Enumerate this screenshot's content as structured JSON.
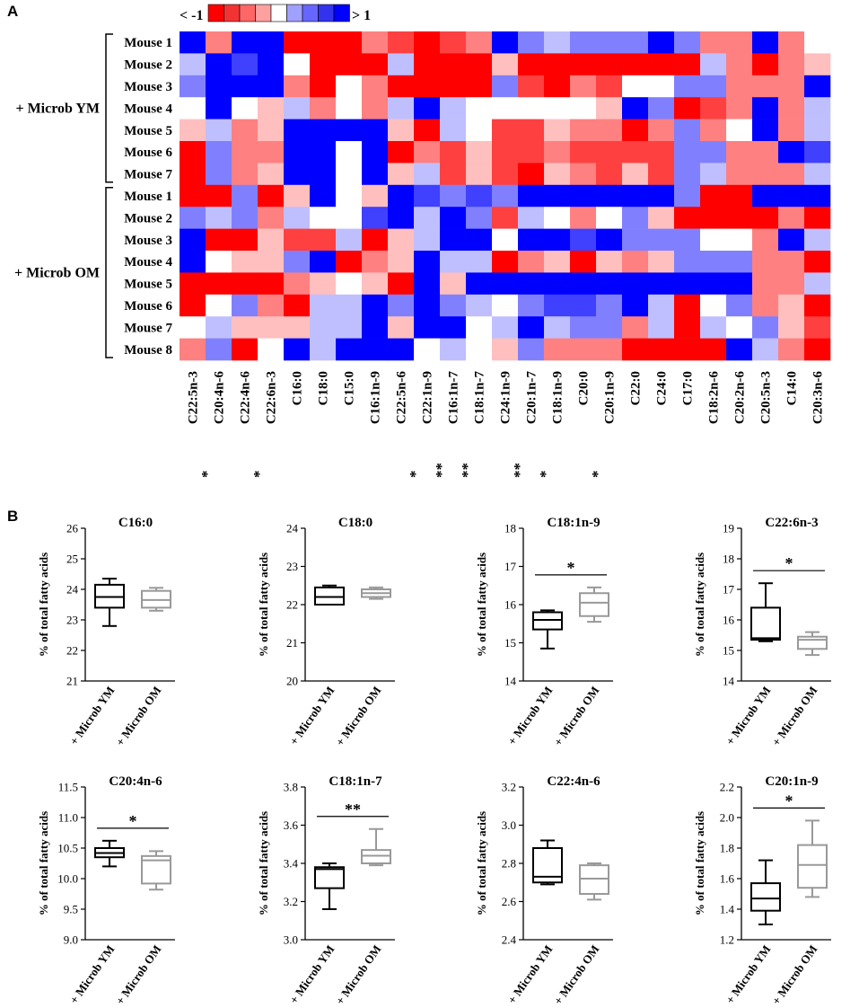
{
  "panel_labels": {
    "a": "A",
    "b": "B"
  },
  "legend": {
    "min_label": "< -1",
    "max_label": "> 1",
    "colors": [
      "#ff0000",
      "#f23333",
      "#ff6666",
      "#ffa0a0",
      "#ffffff",
      "#a0a0ff",
      "#6666ff",
      "#3333ee",
      "#0000ff"
    ]
  },
  "chart_data": [
    {
      "type": "heatmap",
      "title": "",
      "groups": [
        {
          "name": "+ Microb YM",
          "rows": [
            "Mouse 1",
            "Mouse 2",
            "Mouse 3",
            "Mouse 4",
            "Mouse 5",
            "Mouse 6",
            "Mouse 7"
          ]
        },
        {
          "name": "+ Microb OM",
          "rows": [
            "Mouse 1",
            "Mouse 2",
            "Mouse 3",
            "Mouse 4",
            "Mouse 5",
            "Mouse 6",
            "Mouse 7",
            "Mouse 8"
          ]
        }
      ],
      "columns": [
        "C22:5n-3",
        "C20:4n-6",
        "C22:4n-6",
        "C22:6n-3",
        "C16:0",
        "C18:0",
        "C15:0",
        "C16:1n-9",
        "C22:5n-6",
        "C22:1n-9",
        "C16:1n-7",
        "C18:1n-7",
        "C24:1n-9",
        "C20:1n-7",
        "C18:1n-9",
        "C20:0",
        "C20:1n-9",
        "C22:0",
        "C24:0",
        "C17:0",
        "C18:2n-6",
        "C20:2n-6",
        "C20:5n-3",
        "C14:0",
        "C20:3n-6"
      ],
      "column_significance": [
        "",
        "*",
        "",
        "*",
        "",
        "",
        "",
        "",
        "",
        "*",
        "**",
        "**",
        "",
        "**",
        "*",
        "",
        "*",
        "",
        "",
        "",
        "",
        "",
        "",
        "",
        ""
      ],
      "scale_range": [
        -1,
        1
      ],
      "values": [
        [
          1,
          -0.5,
          1,
          1,
          -1,
          -1,
          -1,
          -0.5,
          -0.75,
          -1,
          -0.75,
          -0.5,
          1,
          0.5,
          0.25,
          0.5,
          0.5,
          0.5,
          1,
          0.5,
          -0.5,
          -0.5,
          1,
          -0.5,
          0
        ],
        [
          0.25,
          1,
          0.75,
          1,
          0,
          -1,
          -1,
          -1,
          0.25,
          -1,
          -1,
          -1,
          -0.25,
          -1,
          -1,
          -1,
          -1,
          -1,
          -1,
          -1,
          0.25,
          -0.5,
          -1,
          -0.5,
          -0.25
        ],
        [
          0.5,
          1,
          1,
          1,
          -0.5,
          -1,
          0,
          -0.5,
          -1,
          -1,
          -1,
          -1,
          0.5,
          -0.75,
          -1,
          -0.5,
          -0.75,
          0,
          0,
          0.5,
          0.5,
          -0.5,
          -0.5,
          -0.5,
          1
        ],
        [
          0,
          1,
          0,
          -0.25,
          0.25,
          -0.5,
          0,
          -0.5,
          0.25,
          1,
          0.25,
          0,
          0,
          0,
          0,
          0,
          -0.25,
          1,
          0.5,
          -1,
          -0.75,
          -0.5,
          1,
          -0.5,
          0.25
        ],
        [
          -0.25,
          0.25,
          -0.5,
          -0.25,
          1,
          1,
          1,
          1,
          -0.25,
          -1,
          0.25,
          0,
          -0.75,
          -0.75,
          -0.25,
          -0.5,
          -0.5,
          -1,
          -0.5,
          0.5,
          -0.5,
          0,
          1,
          -0.5,
          0.25
        ],
        [
          -1,
          0.5,
          -0.5,
          -0.5,
          1,
          1,
          0,
          1,
          -1,
          -0.5,
          -0.75,
          -0.25,
          -0.75,
          -0.75,
          -0.5,
          -0.75,
          -0.75,
          -0.75,
          -0.75,
          0.5,
          0.5,
          -0.5,
          -0.5,
          1,
          0.75
        ],
        [
          -1,
          0.5,
          -0.5,
          -0.25,
          1,
          1,
          0,
          1,
          -0.25,
          0.25,
          -0.75,
          -0.25,
          -0.75,
          -1,
          -0.25,
          -0.5,
          -0.75,
          -0.25,
          -0.75,
          0.5,
          0.25,
          -0.5,
          -0.5,
          -0.5,
          0.25
        ],
        [
          -1,
          -1,
          0.5,
          -1,
          -0.25,
          1,
          0,
          -0.25,
          1,
          0.75,
          0.5,
          0.75,
          0.5,
          1,
          1,
          1,
          1,
          1,
          1,
          0.5,
          -1,
          -1,
          1,
          1,
          1
        ],
        [
          0.5,
          0.25,
          0.5,
          -0.5,
          0.25,
          0,
          0,
          0.75,
          1,
          0.25,
          1,
          0.5,
          -0.75,
          0.25,
          0,
          -0.5,
          0,
          0.5,
          -0.25,
          -1,
          -1,
          -1,
          -1,
          -0.5,
          -1
        ],
        [
          1,
          -1,
          -1,
          -0.25,
          -0.75,
          -0.75,
          0.25,
          -1,
          -0.25,
          0.25,
          1,
          1,
          0,
          1,
          1,
          0.75,
          1,
          0.5,
          0.5,
          0.5,
          0,
          0,
          -0.5,
          1,
          0.25
        ],
        [
          1,
          0,
          -0.25,
          -0.25,
          0.5,
          1,
          -1,
          -0.5,
          -0.25,
          1,
          0.25,
          0.25,
          -1,
          -0.5,
          -0.25,
          -1,
          -0.25,
          -0.5,
          -0.25,
          0.5,
          0.5,
          0.5,
          -0.5,
          -0.5,
          -1
        ],
        [
          -1,
          -1,
          -1,
          -1,
          -0.5,
          -0.25,
          0,
          -0.25,
          -1,
          1,
          -0.25,
          1,
          1,
          1,
          1,
          1,
          1,
          1,
          1,
          1,
          1,
          1,
          -0.5,
          -0.5,
          0.25
        ],
        [
          -1,
          0,
          0.5,
          -0.5,
          -1,
          0.25,
          0.25,
          1,
          0.5,
          1,
          0.5,
          0.25,
          0,
          0.5,
          0.75,
          0.75,
          0.5,
          1,
          0.25,
          -1,
          0,
          0.5,
          -0.5,
          -0.25,
          -1
        ],
        [
          0,
          0.25,
          -0.25,
          -0.25,
          -0.25,
          0.25,
          0.25,
          1,
          -0.25,
          1,
          1,
          0,
          0.25,
          1,
          0.25,
          0.5,
          0.5,
          -0.5,
          0.25,
          -1,
          0.25,
          0,
          0.5,
          -0.25,
          -0.75
        ],
        [
          -0.5,
          0.5,
          -1,
          0,
          1,
          0.25,
          1,
          1,
          1,
          0,
          0.25,
          0,
          -0.25,
          0.5,
          -0.5,
          -0.5,
          -0.5,
          -1,
          -1,
          -1,
          -1,
          1,
          0.25,
          -0.5,
          -1
        ]
      ]
    },
    {
      "type": "box",
      "title": "C16:0",
      "ylabel": "% of total fatty acids",
      "ylim": [
        21,
        26
      ],
      "yticks": [
        21,
        22,
        23,
        24,
        25,
        26
      ],
      "categories": [
        "+ Microb YM",
        "+ Microb OM"
      ],
      "significance": "",
      "series": [
        {
          "name": "+ Microb YM",
          "min": 22.8,
          "q1": 23.4,
          "median": 23.75,
          "q3": 24.15,
          "max": 24.35,
          "color": "#000000"
        },
        {
          "name": "+ Microb OM",
          "min": 23.3,
          "q1": 23.4,
          "median": 23.65,
          "q3": 23.95,
          "max": 24.05,
          "color": "#999999"
        }
      ]
    },
    {
      "type": "box",
      "title": "C18:0",
      "ylabel": "% of total fatty acids",
      "ylim": [
        20,
        24
      ],
      "yticks": [
        20,
        21,
        22,
        23,
        24
      ],
      "categories": [
        "+ Microb YM",
        "+ Microb OM"
      ],
      "significance": "",
      "series": [
        {
          "name": "+ Microb YM",
          "min": 22.0,
          "q1": 22.0,
          "median": 22.2,
          "q3": 22.45,
          "max": 22.5,
          "color": "#000000"
        },
        {
          "name": "+ Microb OM",
          "min": 22.15,
          "q1": 22.2,
          "median": 22.3,
          "q3": 22.4,
          "max": 22.45,
          "color": "#999999"
        }
      ]
    },
    {
      "type": "box",
      "title": "C18:1n-9",
      "ylabel": "% of total fatty acids",
      "ylim": [
        14,
        18
      ],
      "yticks": [
        14,
        15,
        16,
        17,
        18
      ],
      "categories": [
        "+ Microb YM",
        "+ Microb OM"
      ],
      "significance": "*",
      "series": [
        {
          "name": "+ Microb YM",
          "min": 14.85,
          "q1": 15.35,
          "median": 15.6,
          "q3": 15.8,
          "max": 15.85,
          "color": "#000000"
        },
        {
          "name": "+ Microb OM",
          "min": 15.55,
          "q1": 15.7,
          "median": 16.05,
          "q3": 16.3,
          "max": 16.45,
          "color": "#999999"
        }
      ]
    },
    {
      "type": "box",
      "title": "C22:6n-3",
      "ylabel": "% of total fatty acids",
      "ylim": [
        14,
        19
      ],
      "yticks": [
        14,
        15,
        16,
        17,
        18,
        19
      ],
      "categories": [
        "+ Microb YM",
        "+ Microb OM"
      ],
      "significance": "*",
      "series": [
        {
          "name": "+ Microb YM",
          "min": 15.3,
          "q1": 15.35,
          "median": 15.4,
          "q3": 16.4,
          "max": 17.2,
          "color": "#000000"
        },
        {
          "name": "+ Microb OM",
          "min": 14.85,
          "q1": 15.05,
          "median": 15.35,
          "q3": 15.45,
          "max": 15.6,
          "color": "#999999"
        }
      ]
    },
    {
      "type": "box",
      "title": "C20:4n-6",
      "ylabel": "% of total fatty acids",
      "ylim": [
        9.0,
        11.5
      ],
      "yticks": [
        "9.0",
        "9.5",
        "10.0",
        "10.5",
        "11.0",
        "11.5"
      ],
      "categories": [
        "+ Microb YM",
        "+ Microb OM"
      ],
      "significance": "*",
      "series": [
        {
          "name": "+ Microb YM",
          "min": 10.2,
          "q1": 10.35,
          "median": 10.42,
          "q3": 10.5,
          "max": 10.62,
          "color": "#000000"
        },
        {
          "name": "+ Microb OM",
          "min": 9.82,
          "q1": 9.92,
          "median": 10.3,
          "q3": 10.37,
          "max": 10.45,
          "color": "#999999"
        }
      ]
    },
    {
      "type": "box",
      "title": "C18:1n-7",
      "ylabel": "% of total fatty acids",
      "ylim": [
        3.0,
        3.8
      ],
      "yticks": [
        "3.0",
        "3.2",
        "3.4",
        "3.6",
        "3.8"
      ],
      "categories": [
        "+ Microb YM",
        "+ Microb OM"
      ],
      "significance": "**",
      "series": [
        {
          "name": "+ Microb YM",
          "min": 3.16,
          "q1": 3.27,
          "median": 3.37,
          "q3": 3.38,
          "max": 3.4,
          "color": "#000000"
        },
        {
          "name": "+ Microb OM",
          "min": 3.39,
          "q1": 3.4,
          "median": 3.44,
          "q3": 3.47,
          "max": 3.58,
          "color": "#999999"
        }
      ]
    },
    {
      "type": "box",
      "title": "C22:4n-6",
      "ylabel": "% of total fatty acids",
      "ylim": [
        2.4,
        3.2
      ],
      "yticks": [
        "2.4",
        "2.6",
        "2.8",
        "3.0",
        "3.2"
      ],
      "categories": [
        "+ Microb YM",
        "+ Microb OM"
      ],
      "significance": "",
      "series": [
        {
          "name": "+ Microb YM",
          "min": 2.69,
          "q1": 2.7,
          "median": 2.73,
          "q3": 2.88,
          "max": 2.92,
          "color": "#000000"
        },
        {
          "name": "+ Microb OM",
          "min": 2.61,
          "q1": 2.64,
          "median": 2.72,
          "q3": 2.79,
          "max": 2.8,
          "color": "#999999"
        }
      ]
    },
    {
      "type": "box",
      "title": "C20:1n-9",
      "ylabel": "% of total fatty acids",
      "ylim": [
        1.2,
        2.2
      ],
      "yticks": [
        "1.2",
        "1.4",
        "1.6",
        "1.8",
        "2.0",
        "2.2"
      ],
      "categories": [
        "+ Microb YM",
        "+ Microb OM"
      ],
      "significance": "*",
      "series": [
        {
          "name": "+ Microb YM",
          "min": 1.3,
          "q1": 1.39,
          "median": 1.47,
          "q3": 1.57,
          "max": 1.72,
          "color": "#000000"
        },
        {
          "name": "+ Microb OM",
          "min": 1.48,
          "q1": 1.54,
          "median": 1.69,
          "q3": 1.82,
          "max": 1.98,
          "color": "#999999"
        }
      ]
    }
  ]
}
